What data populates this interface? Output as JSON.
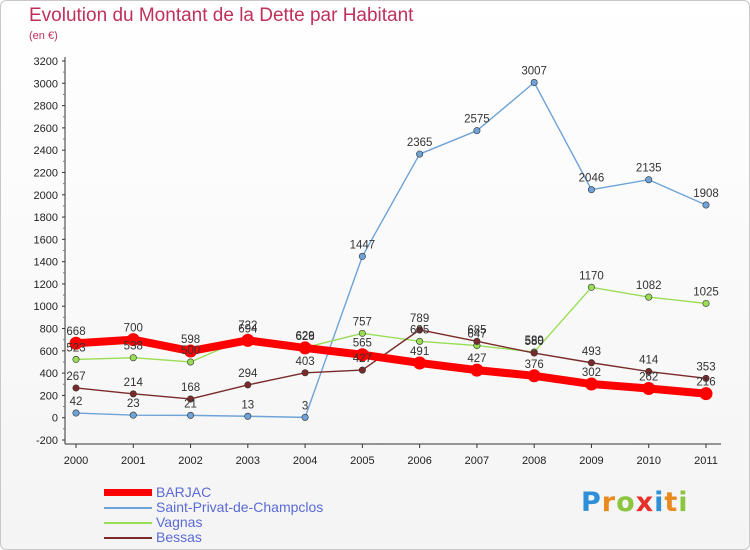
{
  "title": "Evolution du Montant de la Dette par Habitant",
  "unit": "(en €)",
  "brand": {
    "text": "Proxiti",
    "letters": [
      {
        "char": "P",
        "color": "#2f8fd8"
      },
      {
        "char": "r",
        "color": "#e98a1e"
      },
      {
        "char": "o",
        "color": "#8cc63f"
      },
      {
        "char": "x",
        "color": "#e8302b"
      },
      {
        "char": "i",
        "color": "#2f8fd8"
      },
      {
        "char": "t",
        "color": "#e98a1e"
      },
      {
        "char": "i",
        "color": "#8cc63f"
      }
    ]
  },
  "chart_data": {
    "type": "line",
    "title": "Evolution du Montant de la Dette par Habitant",
    "ylabel": "(en €)",
    "xlabel": "",
    "x": [
      "2000",
      "2001",
      "2002",
      "2003",
      "2004",
      "2005",
      "2006",
      "2007",
      "2008",
      "2009",
      "2010",
      "2011"
    ],
    "ylim": [
      -200,
      3200
    ],
    "yticks": [
      -200,
      0,
      200,
      400,
      600,
      800,
      1000,
      1200,
      1400,
      1600,
      1800,
      2000,
      2200,
      2400,
      2600,
      2800,
      3000,
      3200
    ],
    "grid": false,
    "legend": "bottom-left",
    "series": [
      {
        "name": "BARJAC",
        "color": "#ff0000",
        "values": [
          668,
          700,
          598,
          694,
          626,
          565,
          491,
          427,
          376,
          302,
          262,
          216
        ],
        "labels": [
          "668",
          "700",
          "598",
          "694",
          "626",
          "565",
          "491",
          "427",
          "376",
          "302",
          "262",
          "216"
        ]
      },
      {
        "name": "Saint-Privat-de-Champclos",
        "color": "#6ea3d8",
        "values": [
          42,
          23,
          21,
          13,
          3,
          1447,
          2365,
          2575,
          3007,
          2046,
          2135,
          1908
        ],
        "labels": [
          "42",
          "23",
          "21",
          "13",
          "3",
          "1447",
          "2365",
          "2575",
          "3007",
          "2046",
          "2135",
          "1908"
        ]
      },
      {
        "name": "Vagnas",
        "color": "#99dd55",
        "values": [
          523,
          538,
          500,
          722,
          629,
          757,
          685,
          647,
          589,
          1170,
          1082,
          1025
        ],
        "labels": [
          "523",
          "538",
          "500",
          "722",
          "629",
          "757",
          "685",
          "647",
          "589",
          "1170",
          "1082",
          "1025"
        ]
      },
      {
        "name": "Bessas",
        "color": "#7a2a2a",
        "values": [
          267,
          214,
          168,
          294,
          403,
          427,
          789,
          685,
          580,
          493,
          414,
          353
        ],
        "labels": [
          "267",
          "214",
          "168",
          "294",
          "403",
          "427",
          "789",
          "685",
          "580",
          "493",
          "414",
          "353"
        ]
      }
    ]
  }
}
